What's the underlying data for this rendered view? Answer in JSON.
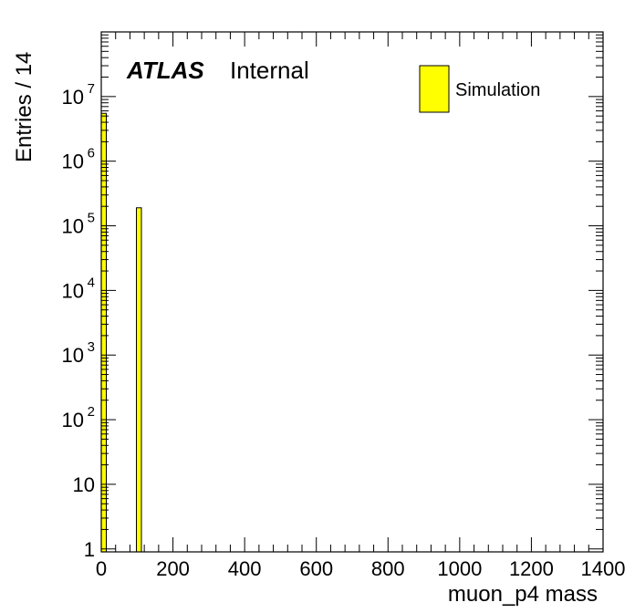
{
  "chart_data": {
    "type": "bar",
    "title": "",
    "xlabel": "muon_p4 mass",
    "ylabel": "Entries / 14",
    "xlim": [
      0,
      1400
    ],
    "ylim": [
      0.9,
      100000000
    ],
    "log_y": true,
    "grid": false,
    "bin_width": 14,
    "x_ticks": [
      {
        "value": 0,
        "label": "0"
      },
      {
        "value": 200,
        "label": "200"
      },
      {
        "value": 400,
        "label": "400"
      },
      {
        "value": 600,
        "label": "600"
      },
      {
        "value": 800,
        "label": "800"
      },
      {
        "value": 1000,
        "label": "1000"
      },
      {
        "value": 1200,
        "label": "1200"
      },
      {
        "value": 1400,
        "label": "1400"
      }
    ],
    "y_ticks": [
      {
        "value": 1,
        "base": "1",
        "exp": ""
      },
      {
        "value": 10,
        "base": "10",
        "exp": ""
      },
      {
        "value": 100,
        "base": "10",
        "exp": "2"
      },
      {
        "value": 1000,
        "base": "10",
        "exp": "3"
      },
      {
        "value": 10000,
        "base": "10",
        "exp": "4"
      },
      {
        "value": 100000,
        "base": "10",
        "exp": "5"
      },
      {
        "value": 1000000,
        "base": "10",
        "exp": "6"
      },
      {
        "value": 10000000,
        "base": "10",
        "exp": "7"
      }
    ],
    "series": [
      {
        "name": "Simulation",
        "color": "#ffff00",
        "bins": [
          {
            "x_low": 0,
            "x_high": 14,
            "value": 5500000
          },
          {
            "x_low": 98,
            "x_high": 112,
            "value": 190000
          }
        ]
      }
    ],
    "legend_position": "top-right",
    "label": {
      "experiment": "ATLAS",
      "status": "Internal"
    }
  }
}
